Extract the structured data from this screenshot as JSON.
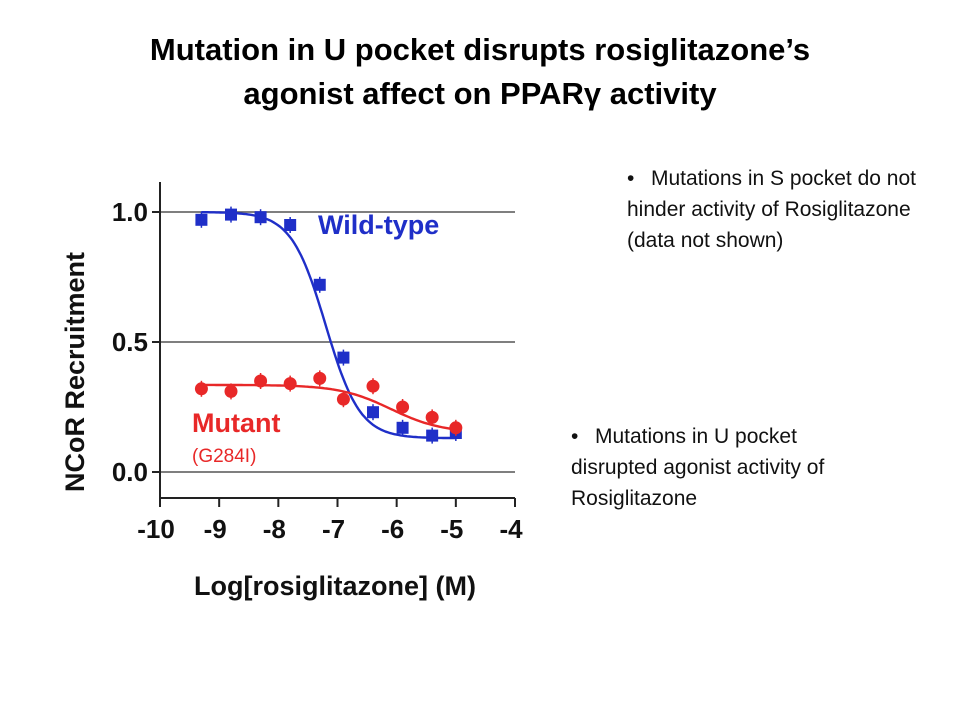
{
  "slide": {
    "title_line1": "Mutation in U pocket disrupts rosiglitazone’s",
    "title_line2": "agonist affect on PPARγ activity",
    "bullet_1": "Mutations in S pocket do not hinder activity of Rosiglitazone (data not shown)",
    "bullet_2": "Mutations in U pocket disrupted agonist activity of Rosiglitazone",
    "bullet_glyph": "•"
  },
  "chart_data": {
    "type": "scatter",
    "xlabel": "Log[rosiglitazone] (M)",
    "ylabel": "NCoR Recruitment",
    "xlim": [
      -10,
      -4
    ],
    "ylim": [
      -0.1,
      1.1
    ],
    "x_ticks": [
      -10,
      -9,
      -8,
      -7,
      -6,
      -5,
      -4
    ],
    "x_tick_labels": [
      "-10",
      "-9",
      "-8",
      "-7",
      "-6",
      "-5",
      "-4"
    ],
    "y_ticks": [
      0.0,
      0.5,
      1.0
    ],
    "y_tick_labels": [
      "0.0",
      "0.5",
      "1.0"
    ],
    "grid": "horizontal",
    "series": [
      {
        "name": "Wild-type",
        "color": "#1f2fc8",
        "marker": "square",
        "x": [
          -9.3,
          -8.8,
          -8.3,
          -7.8,
          -7.3,
          -6.9,
          -6.4,
          -5.9,
          -5.4,
          -5.0
        ],
        "y": [
          0.97,
          0.99,
          0.98,
          0.95,
          0.72,
          0.44,
          0.23,
          0.17,
          0.14,
          0.15
        ],
        "fit": {
          "top": 1.0,
          "bottom": 0.13,
          "logEC50": -7.2,
          "hill": 1.5
        },
        "label_lines": [
          "Wild-type"
        ]
      },
      {
        "name": "Mutant",
        "color": "#e82828",
        "marker": "circle",
        "x": [
          -9.3,
          -8.8,
          -8.3,
          -7.8,
          -7.3,
          -6.9,
          -6.4,
          -5.9,
          -5.4,
          -5.0
        ],
        "y": [
          0.32,
          0.31,
          0.35,
          0.34,
          0.36,
          0.28,
          0.33,
          0.25,
          0.21,
          0.17
        ],
        "fit": {
          "top": 0.335,
          "bottom": 0.15,
          "logEC50": -6.1,
          "hill": 1.0
        },
        "label_lines": [
          "Mutant",
          "(G284I)"
        ]
      }
    ]
  }
}
